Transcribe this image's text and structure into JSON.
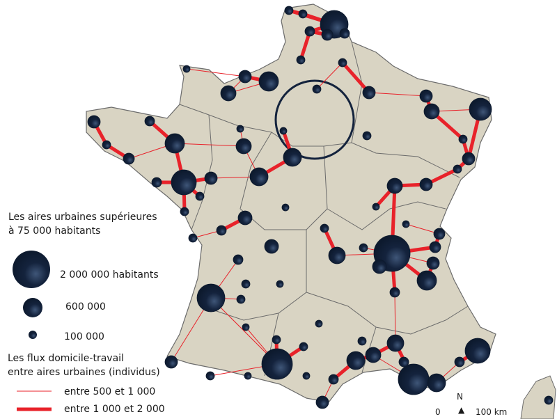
{
  "colors": {
    "land": "#d9d4c3",
    "border": "#6b6b6b",
    "city": "#14233d",
    "flow": "#e8222a",
    "ring": "#14233d"
  },
  "legend": {
    "cities_title_1": "Les aires urbaines supérieures",
    "cities_title_2": "à 75 000 habitants",
    "sizes": [
      {
        "label": "2 000 000 habitants",
        "population": 2000000
      },
      {
        "label": "600 000",
        "population": 600000
      },
      {
        "label": "100 000",
        "population": 100000
      }
    ],
    "flows_title_1": "Les flux domicile-travail",
    "flows_title_2": "entre aires urbaines (individus)",
    "flows": [
      {
        "label": "entre 500 et 1 000",
        "class": "thin"
      },
      {
        "label": "entre 1 000 et 2 000",
        "class": "thick"
      }
    ]
  },
  "scale": {
    "north": "N",
    "zero": "0",
    "distance": "100 km"
  }
}
